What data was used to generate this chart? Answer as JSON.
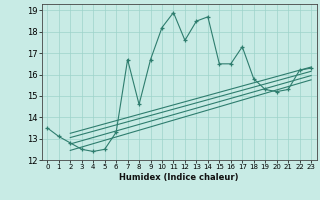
{
  "title": "",
  "xlabel": "Humidex (Indice chaleur)",
  "xlim": [
    -0.5,
    23.5
  ],
  "ylim": [
    12,
    19.3
  ],
  "yticks": [
    12,
    13,
    14,
    15,
    16,
    17,
    18,
    19
  ],
  "xticks": [
    0,
    1,
    2,
    3,
    4,
    5,
    6,
    7,
    8,
    9,
    10,
    11,
    12,
    13,
    14,
    15,
    16,
    17,
    18,
    19,
    20,
    21,
    22,
    23
  ],
  "bg_color": "#c8ebe5",
  "grid_color": "#9dd4ca",
  "line_color": "#2e7d6e",
  "main_line_x": [
    0,
    1,
    2,
    3,
    4,
    5,
    6,
    7,
    8,
    9,
    10,
    11,
    12,
    13,
    14,
    15,
    16,
    17,
    18,
    19,
    20,
    21,
    22,
    23
  ],
  "main_line_y": [
    13.5,
    13.1,
    12.8,
    12.5,
    12.4,
    12.5,
    13.3,
    16.7,
    14.6,
    16.7,
    18.2,
    18.9,
    17.6,
    18.5,
    18.7,
    16.5,
    16.5,
    17.3,
    15.8,
    15.3,
    15.2,
    15.3,
    16.2,
    16.3
  ],
  "reg_lines": [
    {
      "x": [
        2,
        23
      ],
      "y": [
        13.25,
        16.35
      ]
    },
    {
      "x": [
        2,
        23
      ],
      "y": [
        13.05,
        16.15
      ]
    },
    {
      "x": [
        2,
        23
      ],
      "y": [
        12.75,
        15.95
      ]
    },
    {
      "x": [
        2,
        23
      ],
      "y": [
        12.45,
        15.75
      ]
    }
  ]
}
